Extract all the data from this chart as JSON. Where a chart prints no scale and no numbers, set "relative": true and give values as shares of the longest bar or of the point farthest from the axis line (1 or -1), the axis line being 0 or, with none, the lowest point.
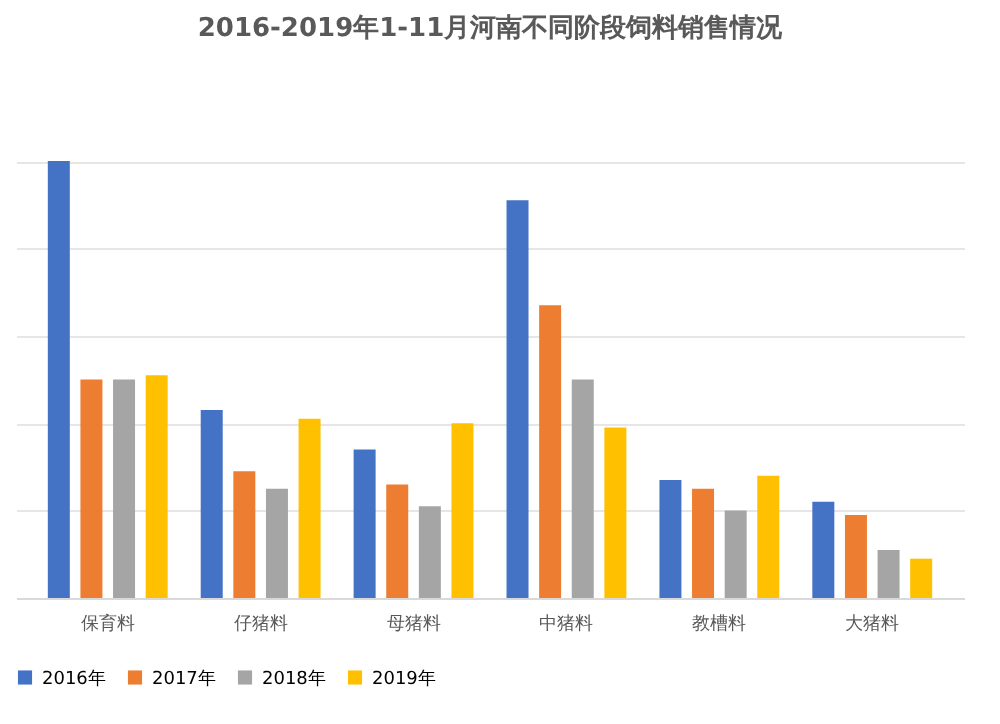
{
  "chart_data": {
    "type": "bar",
    "title": "2016-2019年1-11月河南不同阶段饲料销售情况",
    "relative": true,
    "grid": "y",
    "legend": "bottom",
    "categories": [
      "保育料",
      "仔猪料",
      "母猪料",
      "中猪料",
      "教槽料",
      "大猪料"
    ],
    "series": [
      {
        "name": "2016年",
        "color": "#4472c4",
        "values": [
          1.0,
          0.43,
          0.34,
          0.91,
          0.27,
          0.22
        ]
      },
      {
        "name": "2017年",
        "color": "#ed7d31",
        "values": [
          0.5,
          0.29,
          0.26,
          0.67,
          0.25,
          0.19
        ]
      },
      {
        "name": "2018年",
        "color": "#a5a5a5",
        "values": [
          0.5,
          0.25,
          0.21,
          0.5,
          0.2,
          0.11
        ]
      },
      {
        "name": "2019年",
        "color": "#ffc000",
        "values": [
          0.51,
          0.41,
          0.4,
          0.39,
          0.28,
          0.09
        ]
      }
    ]
  }
}
